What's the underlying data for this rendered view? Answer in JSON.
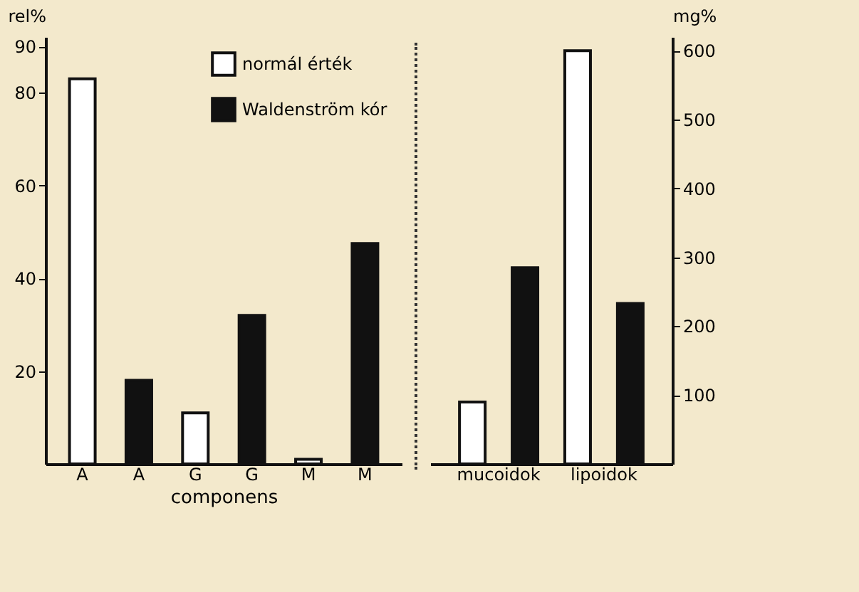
{
  "chart_data": [
    {
      "type": "bar",
      "ylabel": "rel%",
      "xlabel": "componens",
      "categories": [
        "A",
        "A",
        "G",
        "G",
        "M",
        "M"
      ],
      "ylim": [
        0,
        92
      ],
      "yticks": [
        20,
        40,
        60,
        80,
        90
      ],
      "legend": "top right",
      "grid": false,
      "series": [
        {
          "name": "normál érték",
          "color": "#ffffff",
          "values": [
            83,
            null,
            11,
            null,
            1,
            null
          ]
        },
        {
          "name": "Waldenström kór",
          "color": "#111111",
          "values": [
            null,
            18,
            null,
            32,
            null,
            47.5
          ]
        }
      ]
    },
    {
      "type": "bar",
      "y2label": "mg%",
      "categories": [
        "mucoidok",
        "lipoidok"
      ],
      "y2lim": [
        0,
        620
      ],
      "y2ticks": [
        100,
        200,
        300,
        400,
        500,
        600
      ],
      "grid": false,
      "series": [
        {
          "color": "#ffffff",
          "axis": "y2",
          "values": [
            90,
            600
          ]
        },
        {
          "color": "#111111",
          "axis": "y2",
          "values": [
            285,
            233
          ]
        }
      ]
    }
  ]
}
